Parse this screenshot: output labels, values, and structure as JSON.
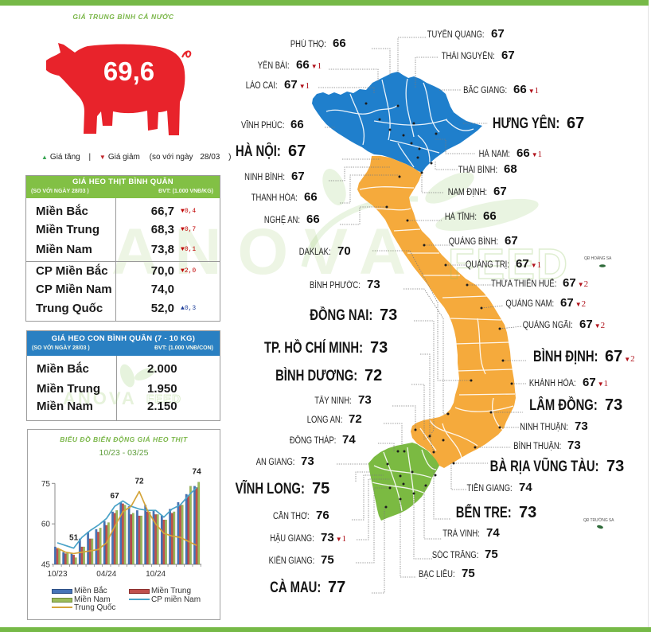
{
  "colors": {
    "header_bar": "#76b947",
    "pig": "#e8232b",
    "pork_header": "#82c045",
    "piglet_header": "#2a80c2"
  },
  "icons": {
    "up": "▲",
    "down": "▼"
  },
  "national_average": {
    "title": "GIÁ TRUNG BÌNH CẢ NƯỚC",
    "value": "69,6"
  },
  "legend": {
    "up_label": "Giá tăng",
    "separator": "|",
    "down_label": "Giá giảm",
    "compare_prefix": "(so với ngày",
    "compare_date": "28/03",
    "compare_suffix": ")"
  },
  "pork_table": {
    "title": "GIÁ HEO THỊT BÌNH QUÂN",
    "compare": "(SO VỚI NGÀY 28/03 )",
    "unit": "ĐVT: (1.000 VNĐ/KG)",
    "rows": [
      {
        "region": "Miền Bắc",
        "price": "66,7",
        "change": "0,4",
        "direction": "down"
      },
      {
        "region": "Miền Trung",
        "price": "68,3",
        "change": "0,7",
        "direction": "down"
      },
      {
        "region": "Miền Nam",
        "price": "73,8",
        "change": "0,1",
        "direction": "down"
      },
      {
        "region": "CP Miền Bắc",
        "price": "70,0",
        "change": "2,0",
        "direction": "down"
      },
      {
        "region": "CP Miền Nam",
        "price": "74,0",
        "change": "",
        "direction": ""
      },
      {
        "region": "Trung Quốc",
        "price": "52,0",
        "change": "0,3",
        "direction": "up"
      }
    ]
  },
  "piglet_table": {
    "title": "GIÁ HEO CON BÌNH QUÂN (7 - 10 KG)",
    "compare": "(SO VỚI NGÀY  28/03 )",
    "unit": "ĐVT: (1.000 VNĐ/CON)",
    "rows": [
      {
        "region": "Miền Bắc",
        "price": "2.000"
      },
      {
        "region": "Miền Trung",
        "price": "1.950"
      },
      {
        "region": "Miền Nam",
        "price": "2.150"
      }
    ]
  },
  "watermark": {
    "brand": "ANOVA",
    "suffix": "FEED"
  },
  "map": {
    "region_colors": {
      "north": "#1f7fcc",
      "central": "#f5aa3c",
      "south": "#7bba42"
    },
    "islands": {
      "hoang_sa": "QĐ HOÀNG SA",
      "truong_sa": "QĐ TRƯỜNG SA"
    },
    "provinces": [
      {
        "name": "PHÚ THỌ:",
        "price": "66"
      },
      {
        "name": "YÊN BÁI:",
        "price": "66",
        "change": "1",
        "direction": "down"
      },
      {
        "name": "LÀO CAI:",
        "price": "67",
        "change": "1",
        "direction": "down"
      },
      {
        "name": "VĨNH PHÚC:",
        "price": "66"
      },
      {
        "name": "HÀ NỘI:",
        "price": "67"
      },
      {
        "name": "TUYÊN QUANG:",
        "price": "67"
      },
      {
        "name": "THÁI NGUYÊN:",
        "price": "67"
      },
      {
        "name": "BẮC GIANG:",
        "price": "66",
        "change": "1",
        "direction": "down"
      },
      {
        "name": "HƯNG YÊN:",
        "price": "67"
      },
      {
        "name": "HÀ NAM:",
        "price": "66",
        "change": "1",
        "direction": "down"
      },
      {
        "name": "THÁI BÌNH:",
        "price": "68"
      },
      {
        "name": "NAM ĐỊNH:",
        "price": "67"
      },
      {
        "name": "NINH BÌNH:",
        "price": "67"
      },
      {
        "name": "THANH HÓA:",
        "price": "66"
      },
      {
        "name": "NGHỆ AN:",
        "price": "66"
      },
      {
        "name": "HÀ TĨNH:",
        "price": "66"
      },
      {
        "name": "QUẢNG BÌNH:",
        "price": "67"
      },
      {
        "name": "QUẢNG TRỊ:",
        "price": "67",
        "change": "1",
        "direction": "down"
      },
      {
        "name": "THỪA THIÊN HUẾ:",
        "price": "67",
        "change": "2",
        "direction": "down"
      },
      {
        "name": "QUẢNG NAM:",
        "price": "67",
        "change": "2",
        "direction": "down"
      },
      {
        "name": "QUẢNG NGÃI:",
        "price": "67",
        "change": "2",
        "direction": "down"
      },
      {
        "name": "BÌNH ĐỊNH:",
        "price": "67",
        "change": "2",
        "direction": "down"
      },
      {
        "name": "KHÁNH HÒA:",
        "price": "67",
        "change": "1",
        "direction": "down"
      },
      {
        "name": "DAKLAK:",
        "price": "70"
      },
      {
        "name": "LÂM ĐỒNG:",
        "price": "73"
      },
      {
        "name": "NINH THUẬN:",
        "price": "73"
      },
      {
        "name": "BÌNH THUẬN:",
        "price": "73"
      },
      {
        "name": "BÌNH PHƯỚC:",
        "price": "73"
      },
      {
        "name": "ĐỒNG NAI:",
        "price": "73"
      },
      {
        "name": "TP. HỒ CHÍ MINH:",
        "price": "73"
      },
      {
        "name": "BÌNH DƯƠNG:",
        "price": "72"
      },
      {
        "name": "TÂY NINH:",
        "price": "73"
      },
      {
        "name": "BÀ RỊA VŨNG TÀU:",
        "price": "73"
      },
      {
        "name": "LONG AN:",
        "price": "72"
      },
      {
        "name": "ĐỒNG THÁP:",
        "price": "74"
      },
      {
        "name": "AN GIANG:",
        "price": "73"
      },
      {
        "name": "TIỀN GIANG:",
        "price": "74"
      },
      {
        "name": "VĨNH LONG:",
        "price": "75"
      },
      {
        "name": "BẾN TRE:",
        "price": "73"
      },
      {
        "name": "CẦN THƠ:",
        "price": "76"
      },
      {
        "name": "TRÀ VINH:",
        "price": "74"
      },
      {
        "name": "HẬU GIANG:",
        "price": "73",
        "change": "1",
        "direction": "down"
      },
      {
        "name": "SÓC TRĂNG:",
        "price": "75"
      },
      {
        "name": "KIÊN GIANG:",
        "price": "75"
      },
      {
        "name": "BẠC LIÊU:",
        "price": "75"
      },
      {
        "name": "CÀ MAU:",
        "price": "77"
      }
    ]
  },
  "chart_data": {
    "type": "bar+line",
    "title": "BIỂU ĐỒ BIẾN ĐỘNG GIÁ HEO THỊT",
    "subtitle": "10/23 - 03/25",
    "xlabel": "",
    "ylabel": "",
    "categories": [
      "10/23",
      "11/23",
      "12/23",
      "01/24",
      "02/24",
      "03/24",
      "04/24",
      "05/24",
      "06/24",
      "07/24",
      "08/24",
      "09/24",
      "10/24",
      "11/24",
      "12/24",
      "01/25",
      "02/25",
      "03/25"
    ],
    "x_tick_labels": [
      {
        "index": 0,
        "label": "10/23"
      },
      {
        "index": 6,
        "label": "04/24"
      },
      {
        "index": 12,
        "label": "10/24"
      }
    ],
    "yticks": [
      45,
      60,
      75
    ],
    "ylim": [
      45,
      77
    ],
    "grid": false,
    "legend_position": "bottom",
    "series": [
      {
        "name": "Miền Bắc",
        "type": "bar",
        "color": "#4573b7",
        "values": [
          51.5,
          49.5,
          49,
          54.5,
          57,
          58,
          61,
          64.5,
          68,
          66.5,
          65,
          67,
          65,
          63,
          65.5,
          68,
          71,
          74
        ]
      },
      {
        "name": "Miền Trung",
        "type": "bar",
        "color": "#c0504d",
        "values": [
          51,
          49,
          48.5,
          51.5,
          54.5,
          57,
          59.5,
          64,
          67.5,
          63.5,
          63,
          64.5,
          63.5,
          61.5,
          64,
          67,
          70.5,
          73.5
        ]
      },
      {
        "name": "Miền Nam",
        "type": "bar",
        "color": "#9bbb59",
        "values": [
          50.5,
          49.5,
          47.5,
          51.5,
          54.5,
          58.5,
          60.5,
          65,
          67,
          64,
          63,
          64.5,
          63.5,
          61.5,
          64.5,
          67,
          74,
          75.5
        ]
      },
      {
        "name": "CP miền Nam",
        "type": "line",
        "color": "#4aa3c8",
        "values": [
          53,
          52,
          51,
          55,
          57.5,
          59.5,
          62,
          66.5,
          68.5,
          66.5,
          65.5,
          65,
          65,
          62.5,
          65.5,
          67,
          70.5,
          73.5
        ]
      },
      {
        "name": "Trung Quốc",
        "type": "line",
        "color": "#d4a43a",
        "values": [
          51,
          49.5,
          49,
          49.5,
          50,
          50.5,
          53,
          59,
          64.5,
          66.5,
          72,
          65,
          60,
          56.5,
          55.5,
          55,
          53.5,
          52
        ]
      }
    ],
    "annotations": [
      {
        "index": 2,
        "text": "51"
      },
      {
        "index": 7,
        "text": "67"
      },
      {
        "index": 10,
        "text": "72"
      },
      {
        "index": 17,
        "text": "74"
      }
    ]
  }
}
